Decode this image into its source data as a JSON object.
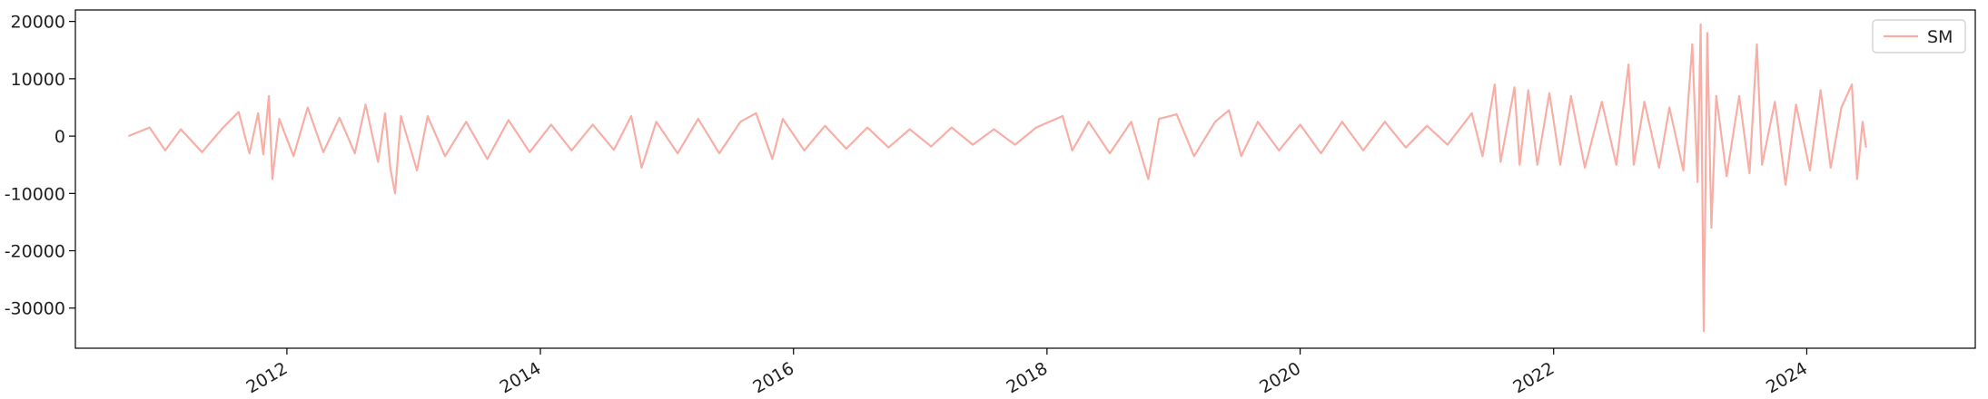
{
  "chart_data": {
    "type": "line",
    "title": "",
    "xlabel": "",
    "ylabel": "",
    "x_axis": {
      "type": "date",
      "range": [
        "2010-05-01",
        "2025-05-01"
      ],
      "ticks": [
        {
          "date": "2012-01-01",
          "label": "2012"
        },
        {
          "date": "2014-01-01",
          "label": "2014"
        },
        {
          "date": "2016-01-01",
          "label": "2016"
        },
        {
          "date": "2018-01-01",
          "label": "2018"
        },
        {
          "date": "2020-01-01",
          "label": "2020"
        },
        {
          "date": "2022-01-01",
          "label": "2022"
        },
        {
          "date": "2024-01-01",
          "label": "2024"
        }
      ],
      "tick_label_rotation": 30
    },
    "y_axis": {
      "range": [
        -37000,
        22000
      ],
      "ticks": [
        {
          "value": 20000,
          "label": "20000"
        },
        {
          "value": 10000,
          "label": "10000"
        },
        {
          "value": 0,
          "label": "0"
        },
        {
          "value": -10000,
          "label": "-10000"
        },
        {
          "value": -20000,
          "label": "-20000"
        },
        {
          "value": -30000,
          "label": "-30000"
        }
      ]
    },
    "grid": false,
    "legend": {
      "position": "top-right",
      "entries": [
        "SM"
      ]
    },
    "series": [
      {
        "name": "SM",
        "color": "#f8aea5",
        "points": [
          {
            "x": "2010-10-01",
            "y": 0
          },
          {
            "x": "2010-12-01",
            "y": 1500
          },
          {
            "x": "2011-01-15",
            "y": -2500
          },
          {
            "x": "2011-03-01",
            "y": 1200
          },
          {
            "x": "2011-05-01",
            "y": -2800
          },
          {
            "x": "2011-07-01",
            "y": 1500
          },
          {
            "x": "2011-08-15",
            "y": 4200
          },
          {
            "x": "2011-09-15",
            "y": -3000
          },
          {
            "x": "2011-10-10",
            "y": 4000
          },
          {
            "x": "2011-10-25",
            "y": -3200
          },
          {
            "x": "2011-11-10",
            "y": 7000
          },
          {
            "x": "2011-11-20",
            "y": -7500
          },
          {
            "x": "2011-12-10",
            "y": 3000
          },
          {
            "x": "2012-01-20",
            "y": -3500
          },
          {
            "x": "2012-03-01",
            "y": 5000
          },
          {
            "x": "2012-04-15",
            "y": -2800
          },
          {
            "x": "2012-06-01",
            "y": 3200
          },
          {
            "x": "2012-07-15",
            "y": -3000
          },
          {
            "x": "2012-08-15",
            "y": 5500
          },
          {
            "x": "2012-09-20",
            "y": -4500
          },
          {
            "x": "2012-10-10",
            "y": 4000
          },
          {
            "x": "2012-10-25",
            "y": -5500
          },
          {
            "x": "2012-11-08",
            "y": -10000
          },
          {
            "x": "2012-11-25",
            "y": 3500
          },
          {
            "x": "2013-01-10",
            "y": -6000
          },
          {
            "x": "2013-02-10",
            "y": 3500
          },
          {
            "x": "2013-04-01",
            "y": -3500
          },
          {
            "x": "2013-06-01",
            "y": 2500
          },
          {
            "x": "2013-08-01",
            "y": -4000
          },
          {
            "x": "2013-10-01",
            "y": 2800
          },
          {
            "x": "2013-12-01",
            "y": -2800
          },
          {
            "x": "2014-02-01",
            "y": 2000
          },
          {
            "x": "2014-04-01",
            "y": -2500
          },
          {
            "x": "2014-06-01",
            "y": 2000
          },
          {
            "x": "2014-08-01",
            "y": -2400
          },
          {
            "x": "2014-09-20",
            "y": 3500
          },
          {
            "x": "2014-10-20",
            "y": -5500
          },
          {
            "x": "2014-12-01",
            "y": 2500
          },
          {
            "x": "2015-02-01",
            "y": -3000
          },
          {
            "x": "2015-04-01",
            "y": 3000
          },
          {
            "x": "2015-06-01",
            "y": -3000
          },
          {
            "x": "2015-08-01",
            "y": 2500
          },
          {
            "x": "2015-09-15",
            "y": 4000
          },
          {
            "x": "2015-11-01",
            "y": -4000
          },
          {
            "x": "2015-12-01",
            "y": 3000
          },
          {
            "x": "2016-02-01",
            "y": -2500
          },
          {
            "x": "2016-04-01",
            "y": 1800
          },
          {
            "x": "2016-06-01",
            "y": -2200
          },
          {
            "x": "2016-08-01",
            "y": 1500
          },
          {
            "x": "2016-10-01",
            "y": -2000
          },
          {
            "x": "2016-12-01",
            "y": 1200
          },
          {
            "x": "2017-02-01",
            "y": -1800
          },
          {
            "x": "2017-04-01",
            "y": 1500
          },
          {
            "x": "2017-06-01",
            "y": -1500
          },
          {
            "x": "2017-08-01",
            "y": 1200
          },
          {
            "x": "2017-10-01",
            "y": -1500
          },
          {
            "x": "2017-12-01",
            "y": 1500
          },
          {
            "x": "2018-02-15",
            "y": 3500
          },
          {
            "x": "2018-03-15",
            "y": -2500
          },
          {
            "x": "2018-05-01",
            "y": 2500
          },
          {
            "x": "2018-07-01",
            "y": -3000
          },
          {
            "x": "2018-09-01",
            "y": 2500
          },
          {
            "x": "2018-10-20",
            "y": -7500
          },
          {
            "x": "2018-11-20",
            "y": 3000
          },
          {
            "x": "2019-01-10",
            "y": 3800
          },
          {
            "x": "2019-03-01",
            "y": -3500
          },
          {
            "x": "2019-05-01",
            "y": 2500
          },
          {
            "x": "2019-06-10",
            "y": 4500
          },
          {
            "x": "2019-07-15",
            "y": -3500
          },
          {
            "x": "2019-09-01",
            "y": 2500
          },
          {
            "x": "2019-11-01",
            "y": -2500
          },
          {
            "x": "2020-01-01",
            "y": 2000
          },
          {
            "x": "2020-03-01",
            "y": -3000
          },
          {
            "x": "2020-05-01",
            "y": 2500
          },
          {
            "x": "2020-07-01",
            "y": -2500
          },
          {
            "x": "2020-09-01",
            "y": 2500
          },
          {
            "x": "2020-11-01",
            "y": -2000
          },
          {
            "x": "2021-01-01",
            "y": 1800
          },
          {
            "x": "2021-03-01",
            "y": -1500
          },
          {
            "x": "2021-04-15",
            "y": 2000
          },
          {
            "x": "2021-05-10",
            "y": 4000
          },
          {
            "x": "2021-06-10",
            "y": -3500
          },
          {
            "x": "2021-07-15",
            "y": 9000
          },
          {
            "x": "2021-08-01",
            "y": -4500
          },
          {
            "x": "2021-09-10",
            "y": 8500
          },
          {
            "x": "2021-09-25",
            "y": -5000
          },
          {
            "x": "2021-10-20",
            "y": 8000
          },
          {
            "x": "2021-11-15",
            "y": -5000
          },
          {
            "x": "2021-12-20",
            "y": 7500
          },
          {
            "x": "2022-01-20",
            "y": -5000
          },
          {
            "x": "2022-02-20",
            "y": 7000
          },
          {
            "x": "2022-04-01",
            "y": -5500
          },
          {
            "x": "2022-05-20",
            "y": 6000
          },
          {
            "x": "2022-07-01",
            "y": -5000
          },
          {
            "x": "2022-08-05",
            "y": 12500
          },
          {
            "x": "2022-08-20",
            "y": -5000
          },
          {
            "x": "2022-09-20",
            "y": 6000
          },
          {
            "x": "2022-11-01",
            "y": -5500
          },
          {
            "x": "2022-12-01",
            "y": 5000
          },
          {
            "x": "2023-01-10",
            "y": -6000
          },
          {
            "x": "2023-02-05",
            "y": 16000
          },
          {
            "x": "2023-02-20",
            "y": -8000
          },
          {
            "x": "2023-03-01",
            "y": 19500
          },
          {
            "x": "2023-03-10",
            "y": -34000
          },
          {
            "x": "2023-03-20",
            "y": 18000
          },
          {
            "x": "2023-04-01",
            "y": -16000
          },
          {
            "x": "2023-04-15",
            "y": 7000
          },
          {
            "x": "2023-05-15",
            "y": -7000
          },
          {
            "x": "2023-06-20",
            "y": 7000
          },
          {
            "x": "2023-07-20",
            "y": -6500
          },
          {
            "x": "2023-08-10",
            "y": 16000
          },
          {
            "x": "2023-08-25",
            "y": -5000
          },
          {
            "x": "2023-10-01",
            "y": 6000
          },
          {
            "x": "2023-11-01",
            "y": -8500
          },
          {
            "x": "2023-12-01",
            "y": 5500
          },
          {
            "x": "2024-01-10",
            "y": -6000
          },
          {
            "x": "2024-02-10",
            "y": 8000
          },
          {
            "x": "2024-03-10",
            "y": -5500
          },
          {
            "x": "2024-04-10",
            "y": 5000
          },
          {
            "x": "2024-05-10",
            "y": 9000
          },
          {
            "x": "2024-05-25",
            "y": -7500
          },
          {
            "x": "2024-06-10",
            "y": 2500
          },
          {
            "x": "2024-06-20",
            "y": -2000
          }
        ]
      }
    ]
  }
}
